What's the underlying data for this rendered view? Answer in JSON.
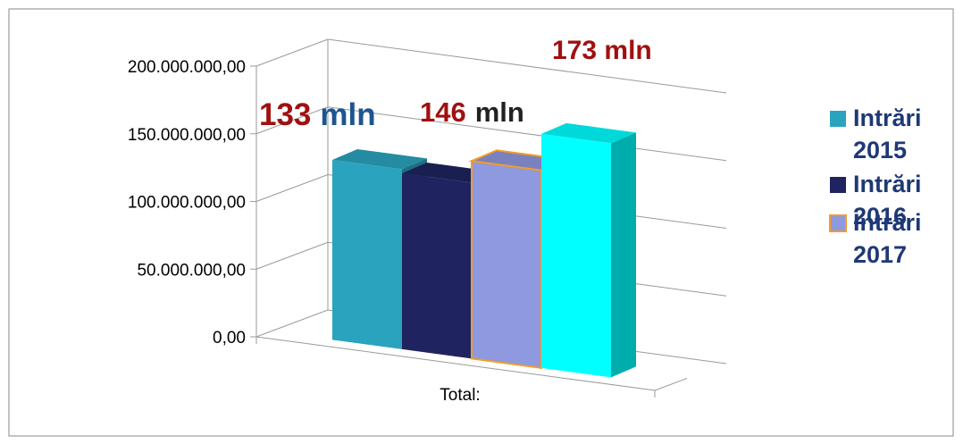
{
  "chart_data": {
    "type": "bar",
    "categories": [
      "Total:"
    ],
    "series": [
      {
        "name": "Intrări 2015",
        "values": [
          133000000
        ],
        "color": "#2AA3BE"
      },
      {
        "name": "Intrări 2016",
        "values": [
          130000000
        ],
        "color": "#1F2460"
      },
      {
        "name": "Intrări 2017",
        "values": [
          146000000
        ],
        "color": "#8E99E0"
      },
      {
        "name": "",
        "values": [
          173000000
        ],
        "color": "#00FFFF"
      }
    ],
    "y_ticks": [
      "0,00",
      "50.000.000,00",
      "100.000.000,00",
      "150.000.000,00",
      "200.000.000,00"
    ],
    "ylim": [
      0,
      200000000
    ],
    "grid": true,
    "three_d": true,
    "legend": {
      "placement": "right",
      "entries": [
        {
          "line1": "Intrări",
          "line2": "2015",
          "color": "#2AA3BE"
        },
        {
          "line1": "Intrări",
          "line2": "2016",
          "color": "#1F2460"
        },
        {
          "line1": "Intrări",
          "line2": "2017",
          "color": "#8E99E0",
          "border": "#F39C27"
        }
      ]
    },
    "annotations": [
      {
        "value": "133",
        "unit": "mln",
        "value_color": "#A01010",
        "unit_color": "#1E5590"
      },
      {
        "value": "146",
        "unit": "mln",
        "value_color": "#A01010",
        "unit_color": "#222222"
      },
      {
        "value": "173 mln",
        "unit": "",
        "value_color": "#A01010",
        "unit_color": "#A01010"
      }
    ]
  }
}
